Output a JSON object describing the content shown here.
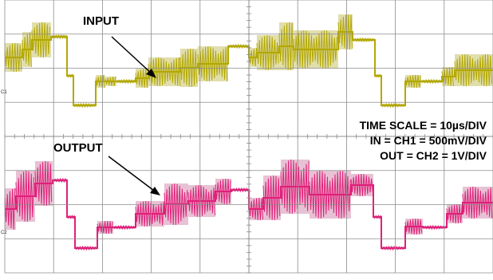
{
  "annotations": {
    "input_label": "INPUT",
    "output_label": "OUTPUT",
    "time_scale": "TIME SCALE = 10µs/DIV",
    "input_scale": "IN = CH1 = 500mV/DIV",
    "output_scale": "OUT = CH2 = 1V/DIV"
  },
  "channel_markers": {
    "ch1": "C1",
    "ch2": "C2"
  },
  "colors": {
    "background": "#ffffff",
    "grid": "#8c8c8c",
    "ch1_trace": "#b3a800",
    "ch1_envelope": "#c9c26a",
    "ch2_trace": "#e0207a",
    "ch2_envelope": "#d38fb0",
    "text": "#000000"
  },
  "scope": {
    "horizontal_divisions": 10,
    "vertical_divisions": 8
  }
}
